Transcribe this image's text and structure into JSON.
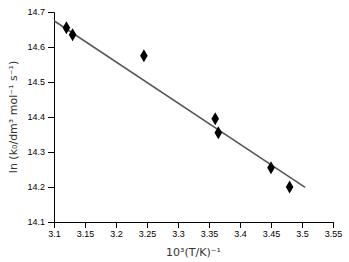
{
  "chart_data": {
    "type": "scatter",
    "xlabel": "10³(T/K)⁻¹",
    "ylabel": "ln (k₀/dm³ mol⁻¹ s⁻¹)",
    "series": [
      {
        "type": "line",
        "color": "#555555",
        "x": [
          3.1,
          3.505
        ],
        "values": [
          14.675,
          14.199125
        ]
      },
      {
        "type": "scatter",
        "color": "#000000",
        "marker": "diamond",
        "x": [
          3.12,
          3.13,
          3.245,
          3.36,
          3.365,
          3.45,
          3.48
        ],
        "values": [
          14.655,
          14.635,
          14.575,
          14.395,
          14.355,
          14.255,
          14.2
        ]
      }
    ],
    "xlim": [
      3.1,
      3.55
    ],
    "xticks": [
      3.1,
      3.15,
      3.2,
      3.25,
      3.3,
      3.35,
      3.4,
      3.45,
      3.5,
      3.55
    ],
    "ylim": [
      14.1,
      14.7
    ],
    "yticks": [
      14.1,
      14.2,
      14.3,
      14.4,
      14.5,
      14.6,
      14.7
    ],
    "grid": false
  }
}
